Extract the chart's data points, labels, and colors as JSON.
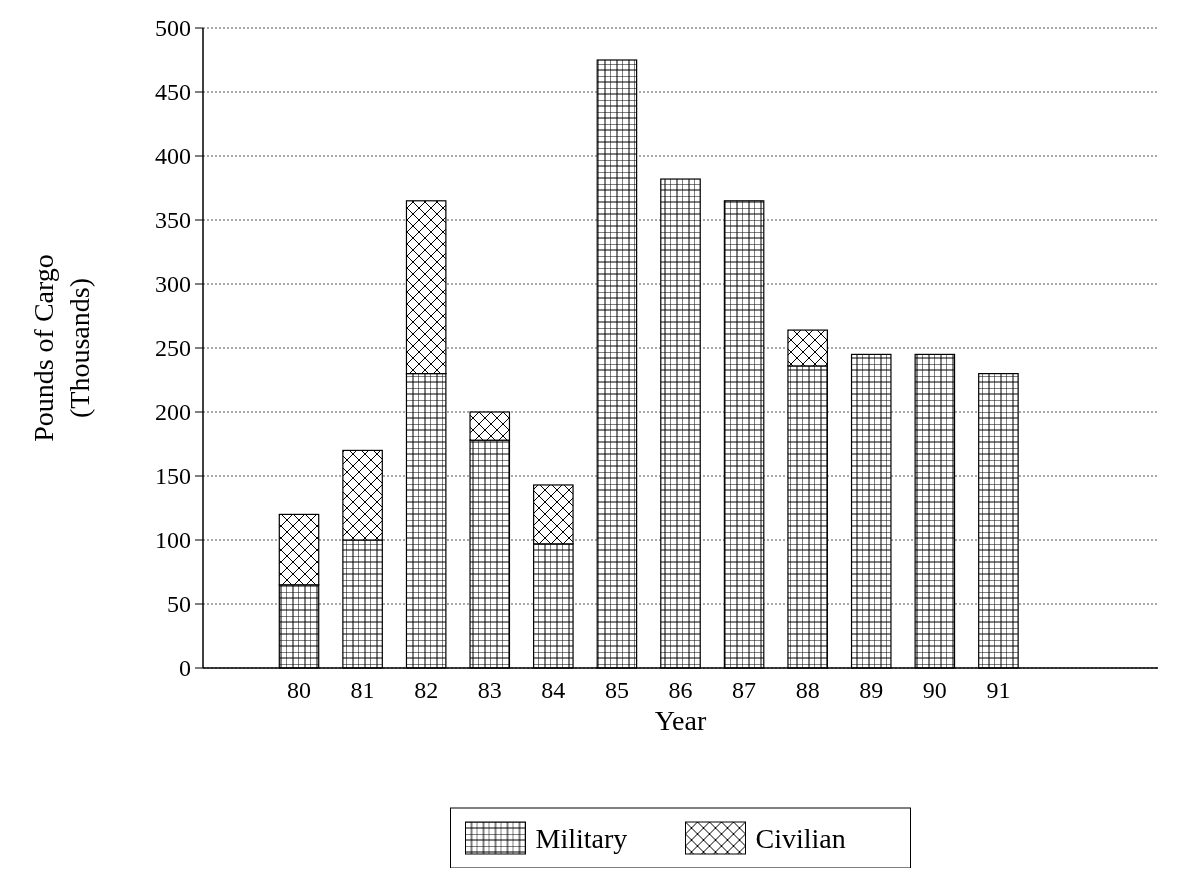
{
  "chart_data": {
    "type": "bar",
    "stacked": true,
    "xlabel": "Year",
    "ylabel": "Pounds of Cargo\n(Thousands)",
    "categories": [
      null,
      "80",
      "81",
      "82",
      "83",
      "84",
      "85",
      "86",
      "87",
      "88",
      "89",
      "90",
      "91",
      null,
      null
    ],
    "series": [
      {
        "name": "Military",
        "color": "#000000",
        "values": [
          null,
          65,
          100,
          230,
          178,
          97,
          475,
          382,
          365,
          236,
          245,
          245,
          230,
          0,
          null
        ]
      },
      {
        "name": "Civilian",
        "color": "#000000",
        "values": [
          null,
          55,
          70,
          135,
          22,
          46,
          0,
          0,
          0,
          28,
          0,
          0,
          0,
          0,
          null
        ]
      }
    ],
    "ylim": [
      0,
      500
    ],
    "yticks": [
      0,
      50,
      100,
      150,
      200,
      250,
      300,
      350,
      400,
      450,
      500
    ],
    "grid": "y",
    "legend": "bottom"
  }
}
